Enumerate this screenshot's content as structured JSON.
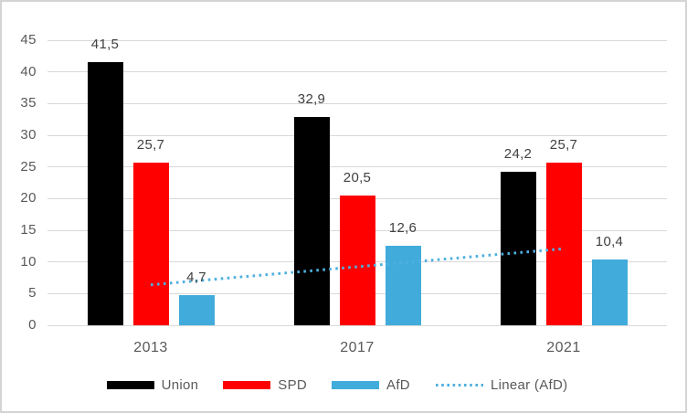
{
  "chart_data": {
    "type": "bar",
    "title": "",
    "categories": [
      "2013",
      "2017",
      "2021"
    ],
    "series": [
      {
        "name": "Union",
        "color": "#000000",
        "values": [
          41.5,
          32.9,
          24.2
        ],
        "labels": [
          "41,5",
          "32,9",
          "24,2"
        ]
      },
      {
        "name": "SPD",
        "color": "#fe0000",
        "values": [
          25.7,
          20.5,
          25.7
        ],
        "labels": [
          "25,7",
          "20,5",
          "25,7"
        ]
      },
      {
        "name": "AfD",
        "color": "#41abdc",
        "values": [
          4.7,
          12.6,
          10.4
        ],
        "labels": [
          "4,7",
          "12,6",
          "10,4"
        ]
      }
    ],
    "trendline": {
      "label": "Linear (AfD)",
      "source_series": "AfD",
      "color": "#4fb0df",
      "style": "dotted"
    },
    "y_axis": {
      "min": 0,
      "max": 45,
      "tick_step": 5,
      "tick_labels": [
        "0",
        "5",
        "10",
        "15",
        "20",
        "25",
        "30",
        "35",
        "40",
        "45"
      ]
    },
    "x_axis": {
      "tick_labels": [
        "2013",
        "2017",
        "2021"
      ]
    },
    "grid": true,
    "legend_position": "bottom",
    "legend_entries": [
      "Union",
      "SPD",
      "AfD",
      "Linear (AfD)"
    ]
  },
  "colors": {
    "background": "#ffffff",
    "frame_border": "#d4d4d4",
    "gridline": "#d9d9d9",
    "axis_line": "#d9d9d9",
    "tick_label": "#595959",
    "category_label": "#595959",
    "data_label": "#404040",
    "legend_label": "#595959"
  }
}
